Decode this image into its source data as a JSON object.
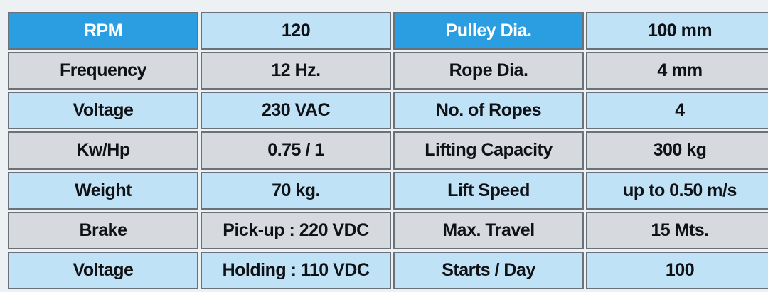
{
  "spec_table": {
    "rows": [
      [
        "RPM",
        "120",
        "Pulley Dia.",
        "100 mm"
      ],
      [
        "Frequency",
        "12 Hz.",
        "Rope Dia.",
        "4 mm"
      ],
      [
        "Voltage",
        "230 VAC",
        "No. of Ropes",
        "4"
      ],
      [
        "Kw/Hp",
        "0.75 / 1",
        "Lifting Capacity",
        "300 kg"
      ],
      [
        "Weight",
        "70 kg.",
        "Lift Speed",
        "up to 0.50 m/s"
      ],
      [
        "Brake",
        "Pick-up : 220 VDC",
        "Max. Travel",
        "15 Mts."
      ],
      [
        "Voltage",
        "Holding : 110 VDC",
        "Starts / Day",
        "100"
      ]
    ]
  },
  "colors": {
    "header_accent": "#2a9ee0",
    "row_blue": "#bfe2f6",
    "row_grey": "#d6dadf",
    "border": "#6b7178"
  }
}
